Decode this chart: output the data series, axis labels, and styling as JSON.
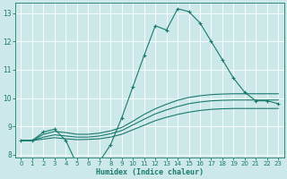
{
  "xlabel": "Humidex (Indice chaleur)",
  "bg_color": "#cce8e8",
  "grid_color": "#b0d8d8",
  "line_color": "#1a7a6e",
  "xlim": [
    -0.5,
    23.5
  ],
  "ylim": [
    7.9,
    13.35
  ],
  "yticks": [
    8,
    9,
    10,
    11,
    12,
    13
  ],
  "xticks": [
    0,
    1,
    2,
    3,
    4,
    5,
    6,
    7,
    8,
    9,
    10,
    11,
    12,
    13,
    14,
    15,
    16,
    17,
    18,
    19,
    20,
    21,
    22,
    23
  ],
  "main_x": [
    0,
    1,
    2,
    3,
    4,
    5,
    6,
    7,
    8,
    9,
    10,
    11,
    12,
    13,
    14,
    15,
    16,
    17,
    18,
    19,
    20,
    21,
    22,
    23
  ],
  "main_y": [
    8.5,
    8.5,
    8.8,
    8.9,
    8.5,
    7.65,
    7.85,
    7.75,
    8.35,
    9.3,
    10.4,
    11.5,
    12.55,
    12.4,
    13.15,
    13.05,
    12.65,
    12.0,
    11.35,
    10.7,
    10.2,
    9.9,
    9.9,
    9.8
  ],
  "smooth1_x": [
    0,
    1,
    2,
    3,
    4,
    5,
    6,
    7,
    8,
    9,
    10,
    11,
    12,
    13,
    14,
    15,
    16,
    17,
    18,
    19,
    20,
    21,
    22,
    23
  ],
  "smooth1_y": [
    8.5,
    8.5,
    8.72,
    8.82,
    8.78,
    8.72,
    8.72,
    8.76,
    8.84,
    8.96,
    9.18,
    9.42,
    9.62,
    9.78,
    9.92,
    10.02,
    10.08,
    10.12,
    10.14,
    10.15,
    10.15,
    10.15,
    10.15,
    10.15
  ],
  "smooth2_x": [
    0,
    1,
    2,
    3,
    4,
    5,
    6,
    7,
    8,
    9,
    10,
    11,
    12,
    13,
    14,
    15,
    16,
    17,
    18,
    19,
    20,
    21,
    22,
    23
  ],
  "smooth2_y": [
    8.5,
    8.5,
    8.62,
    8.7,
    8.66,
    8.62,
    8.62,
    8.66,
    8.74,
    8.85,
    9.05,
    9.25,
    9.44,
    9.58,
    9.7,
    9.8,
    9.86,
    9.9,
    9.92,
    9.93,
    9.93,
    9.93,
    9.93,
    9.93
  ],
  "smooth3_x": [
    0,
    1,
    2,
    3,
    4,
    5,
    6,
    7,
    8,
    9,
    10,
    11,
    12,
    13,
    14,
    15,
    16,
    17,
    18,
    19,
    20,
    21,
    22,
    23
  ],
  "smooth3_y": [
    8.5,
    8.5,
    8.55,
    8.6,
    8.56,
    8.53,
    8.54,
    8.56,
    8.62,
    8.72,
    8.88,
    9.04,
    9.2,
    9.32,
    9.42,
    9.5,
    9.56,
    9.6,
    9.62,
    9.63,
    9.63,
    9.63,
    9.63,
    9.63
  ]
}
